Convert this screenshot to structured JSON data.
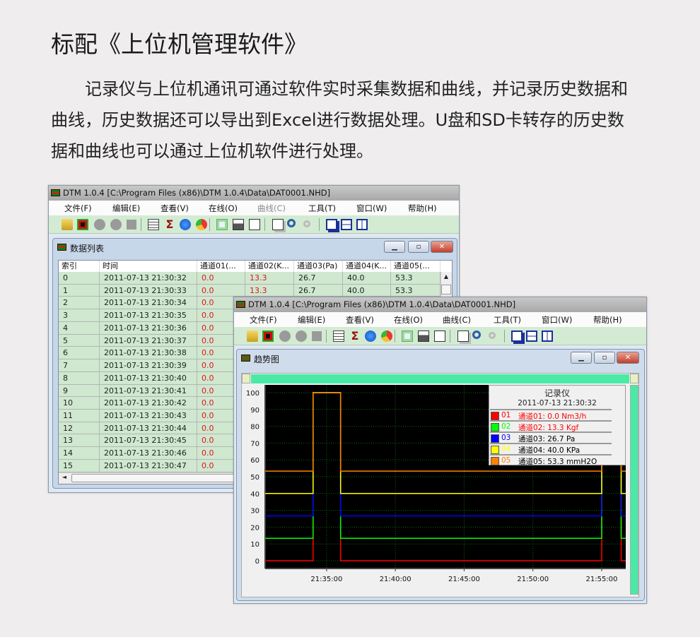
{
  "heading": "标配《上位机管理软件》",
  "intro": "记录仪与上位机通讯可通过软件实时采集数据和曲线，并记录历史数据和曲线，历史数据还可以导出到Excel进行数据处理。U盘和SD卡转存的历史数据和曲线也可以通过上位机软件进行处理。",
  "app_title": "DTM 1.0.4 [C:\\Program Files (x86)\\DTM 1.0.4\\Data\\DAT0001.NHD]",
  "menu": [
    {
      "label": "文件(F)",
      "enabled": true
    },
    {
      "label": "编辑(E)",
      "enabled": true
    },
    {
      "label": "查看(V)",
      "enabled": true
    },
    {
      "label": "在线(O)",
      "enabled": true
    },
    {
      "label": "曲线(C)",
      "enabled": true
    },
    {
      "label": "工具(T)",
      "enabled": true
    },
    {
      "label": "窗口(W)",
      "enabled": true
    },
    {
      "label": "帮助(H)",
      "enabled": true
    }
  ],
  "menu_disabled_in_table_window": "曲线(C)",
  "toolbar_icons": [
    "open-folder-icon",
    "trend-chart-icon",
    "record-icon",
    "pause-icon",
    "stop-icon",
    "|",
    "table-icon",
    "sigma-icon",
    "info-icon",
    "pie-chart-icon",
    "|",
    "export-excel-icon",
    "print-icon",
    "print-preview-icon",
    "|",
    "copy-icon",
    "zoom-icon",
    "zoom-disabled-icon",
    "|",
    "cascade-icon",
    "tile-horizontal-icon",
    "tile-vertical-icon"
  ],
  "table_window": {
    "title": "数据列表",
    "columns": [
      "索引",
      "时间",
      "通道01(...",
      "通道02(K...",
      "通道03(Pa)",
      "通道04(K...",
      "通道05(..."
    ],
    "rows": [
      [
        "0",
        "2011-07-13 21:30:32",
        "0.0",
        "13.3",
        "26.7",
        "40.0",
        "53.3"
      ],
      [
        "1",
        "2011-07-13 21:30:33",
        "0.0",
        "13.3",
        "26.7",
        "40.0",
        "53.3"
      ],
      [
        "2",
        "2011-07-13 21:30:34",
        "0.0"
      ],
      [
        "3",
        "2011-07-13 21:30:35",
        "0.0"
      ],
      [
        "4",
        "2011-07-13 21:30:36",
        "0.0"
      ],
      [
        "5",
        "2011-07-13 21:30:37",
        "0.0"
      ],
      [
        "6",
        "2011-07-13 21:30:38",
        "0.0"
      ],
      [
        "7",
        "2011-07-13 21:30:39",
        "0.0"
      ],
      [
        "8",
        "2011-07-13 21:30:40",
        "0.0"
      ],
      [
        "9",
        "2011-07-13 21:30:41",
        "0.0"
      ],
      [
        "10",
        "2011-07-13 21:30:42",
        "0.0"
      ],
      [
        "11",
        "2011-07-13 21:30:43",
        "0.0"
      ],
      [
        "12",
        "2011-07-13 21:30:44",
        "0.0"
      ],
      [
        "13",
        "2011-07-13 21:30:45",
        "0.0"
      ],
      [
        "14",
        "2011-07-13 21:30:46",
        "0.0"
      ],
      [
        "15",
        "2011-07-13 21:30:47",
        "0.0"
      ]
    ]
  },
  "trend_window": {
    "title": "趋势图"
  },
  "chart_data": {
    "type": "line",
    "step": true,
    "background": "#000000",
    "grid": true,
    "x": [
      "21:30:32",
      "21:34:01",
      "21:34:01",
      "21:36:01",
      "21:36:01",
      "21:55:00",
      "21:55:00",
      "21:56:25",
      "21:56:25",
      "21:56:45"
    ],
    "xlim": [
      "21:30:32",
      "21:56:45"
    ],
    "xticks": [
      "21:35:00",
      "21:40:00",
      "21:45:00",
      "21:50:00",
      "21:55:00"
    ],
    "ylim": [
      0,
      100
    ],
    "yticks": [
      0,
      10,
      20,
      30,
      40,
      50,
      60,
      70,
      80,
      90,
      100
    ],
    "series": [
      {
        "code": "01",
        "color": "#ff0000",
        "values": [
          0,
          0,
          100,
          100,
          0,
          0,
          100,
          100,
          0,
          0
        ]
      },
      {
        "code": "02",
        "color": "#00ff00",
        "values": [
          13.3,
          13.3,
          100,
          100,
          13.3,
          13.3,
          100,
          100,
          13.3,
          13.3
        ]
      },
      {
        "code": "03",
        "color": "#0000ff",
        "values": [
          26.7,
          26.7,
          100,
          100,
          26.7,
          26.7,
          100,
          100,
          26.7,
          26.7
        ]
      },
      {
        "code": "04",
        "color": "#ffff00",
        "values": [
          40,
          40,
          100,
          100,
          40,
          40,
          100,
          100,
          40,
          40
        ]
      },
      {
        "code": "05",
        "color": "#ff8000",
        "values": [
          53.3,
          53.3,
          100,
          100,
          53.3,
          53.3,
          100,
          100,
          53.3,
          53.3
        ]
      }
    ],
    "legend": {
      "placement": "top-right",
      "title": "记录仪",
      "timestamp": "2011-07-13 21:30:32",
      "entries": [
        {
          "code": "01",
          "text": "通道01: 0.0 Nm3/h",
          "text_color": "#ff0000"
        },
        {
          "code": "02",
          "text": "通道02: 13.3 Kgf",
          "text_color": "#ff0000"
        },
        {
          "code": "03",
          "text": "通道03: 26.7 Pa",
          "text_color": "#000000"
        },
        {
          "code": "04",
          "text": "通道04: 40.0 KPa",
          "text_color": "#000000"
        },
        {
          "code": "05",
          "text": "通道05: 53.3 mmH2O",
          "text_color": "#000000"
        }
      ]
    }
  }
}
